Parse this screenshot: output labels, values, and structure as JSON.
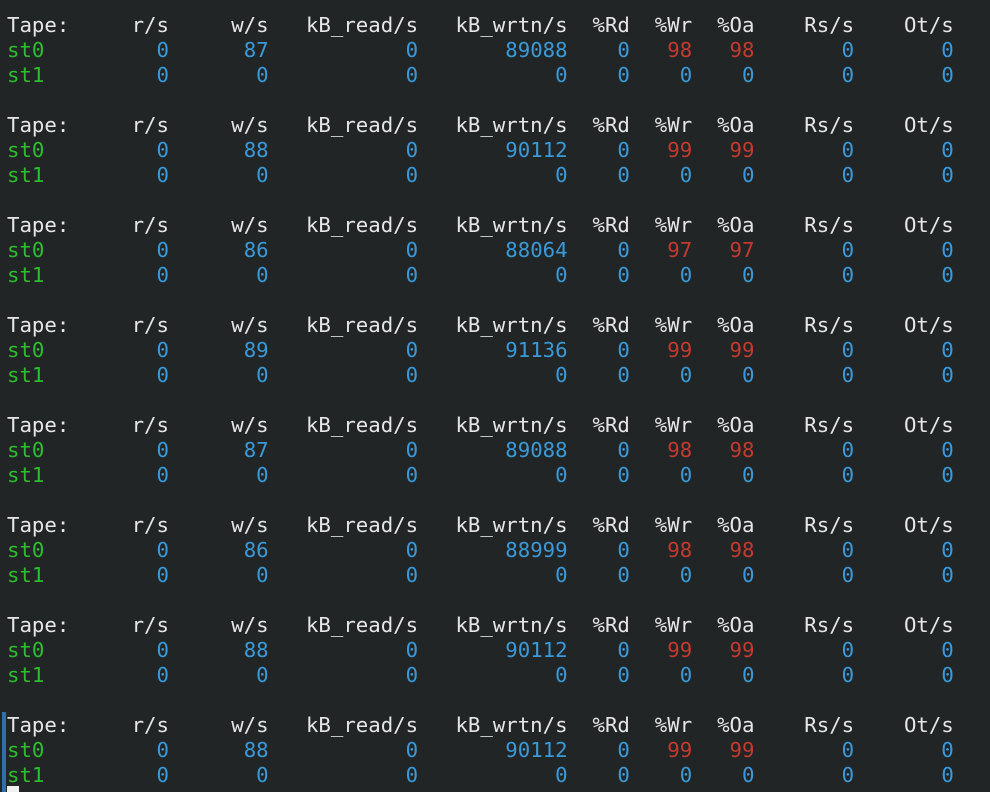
{
  "headers": [
    "Tape:",
    "r/s",
    "w/s",
    "kB_read/s",
    "kB_wrtn/s",
    "%Rd",
    "%Wr",
    "%Oa",
    "Rs/s",
    "Ot/s"
  ],
  "colors": {
    "background": "#222526",
    "header": "#e6e6e6",
    "device": "#2bc02b",
    "value": "#3a9ad9",
    "high_percent": "#c43a2f"
  },
  "blocks": [
    {
      "rows": [
        {
          "device": "st0",
          "values": [
            "0",
            "87",
            "0",
            "89088",
            "0",
            "98",
            "98",
            "0",
            "0"
          ]
        },
        {
          "device": "st1",
          "values": [
            "0",
            "0",
            "0",
            "0",
            "0",
            "0",
            "0",
            "0",
            "0"
          ]
        }
      ]
    },
    {
      "rows": [
        {
          "device": "st0",
          "values": [
            "0",
            "88",
            "0",
            "90112",
            "0",
            "99",
            "99",
            "0",
            "0"
          ]
        },
        {
          "device": "st1",
          "values": [
            "0",
            "0",
            "0",
            "0",
            "0",
            "0",
            "0",
            "0",
            "0"
          ]
        }
      ]
    },
    {
      "rows": [
        {
          "device": "st0",
          "values": [
            "0",
            "86",
            "0",
            "88064",
            "0",
            "97",
            "97",
            "0",
            "0"
          ]
        },
        {
          "device": "st1",
          "values": [
            "0",
            "0",
            "0",
            "0",
            "0",
            "0",
            "0",
            "0",
            "0"
          ]
        }
      ]
    },
    {
      "rows": [
        {
          "device": "st0",
          "values": [
            "0",
            "89",
            "0",
            "91136",
            "0",
            "99",
            "99",
            "0",
            "0"
          ]
        },
        {
          "device": "st1",
          "values": [
            "0",
            "0",
            "0",
            "0",
            "0",
            "0",
            "0",
            "0",
            "0"
          ]
        }
      ]
    },
    {
      "rows": [
        {
          "device": "st0",
          "values": [
            "0",
            "87",
            "0",
            "89088",
            "0",
            "98",
            "98",
            "0",
            "0"
          ]
        },
        {
          "device": "st1",
          "values": [
            "0",
            "0",
            "0",
            "0",
            "0",
            "0",
            "0",
            "0",
            "0"
          ]
        }
      ]
    },
    {
      "rows": [
        {
          "device": "st0",
          "values": [
            "0",
            "86",
            "0",
            "88999",
            "0",
            "98",
            "98",
            "0",
            "0"
          ]
        },
        {
          "device": "st1",
          "values": [
            "0",
            "0",
            "0",
            "0",
            "0",
            "0",
            "0",
            "0",
            "0"
          ]
        }
      ]
    },
    {
      "rows": [
        {
          "device": "st0",
          "values": [
            "0",
            "88",
            "0",
            "90112",
            "0",
            "99",
            "99",
            "0",
            "0"
          ]
        },
        {
          "device": "st1",
          "values": [
            "0",
            "0",
            "0",
            "0",
            "0",
            "0",
            "0",
            "0",
            "0"
          ]
        }
      ]
    },
    {
      "rows": [
        {
          "device": "st0",
          "values": [
            "0",
            "88",
            "0",
            "90112",
            "0",
            "99",
            "99",
            "0",
            "0"
          ]
        },
        {
          "device": "st1",
          "values": [
            "0",
            "0",
            "0",
            "0",
            "0",
            "0",
            "0",
            "0",
            "0"
          ]
        }
      ]
    }
  ]
}
